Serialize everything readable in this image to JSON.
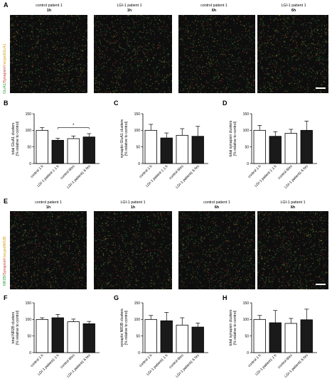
{
  "colors": {
    "black_bar": "#1a1a1a",
    "white_bar": "#ffffff",
    "green": "#2e9e3e",
    "red": "#c0392b",
    "yellow": "#d4a017"
  },
  "row1": {
    "letter": "A",
    "titles": [
      {
        "line1": "control patient 1",
        "line2": "1h"
      },
      {
        "line1": "LGI-1 patient 1",
        "line2": "1h"
      },
      {
        "line1": "control patient 1",
        "line2": "6h"
      },
      {
        "line1": "LGI-1 patient 1",
        "line2": "6h"
      }
    ],
    "side_label": {
      "p1": "GluA1/",
      "p2": "Synapsin/",
      "p3": "merged",
      "p4": "GluA1"
    }
  },
  "row2": {
    "letter": "E",
    "titles": [
      {
        "line1": "control patient 1",
        "line2": "1h"
      },
      {
        "line1": "LGI-1 patient 1",
        "line2": "1h"
      },
      {
        "line1": "control patient 1",
        "line2": "6h"
      },
      {
        "line1": "LGI-1 patient 1",
        "line2": "6h"
      }
    ],
    "side_label": {
      "p1": "NR2B/",
      "p2": "Synapsin/",
      "p3": "merged",
      "p4": "NR2B"
    }
  },
  "chart_data": [
    {
      "panel": "B",
      "type": "bar",
      "ylabel": "total GluA1 clusters\n(% relative to control)",
      "categories": [
        "control 1 h",
        "LGI-1 patient 1 1 h",
        "control 6hrs",
        "LGI-1 patient1 6 hrs"
      ],
      "values": [
        100,
        70,
        75,
        80
      ],
      "errors": [
        8,
        6,
        8,
        10
      ],
      "ylim": [
        0,
        150
      ],
      "annotation": {
        "text": "*",
        "from": 1,
        "to": 3
      }
    },
    {
      "panel": "C",
      "type": "bar",
      "ylabel": "synaptic GluA1 clusters\n(% relative to control)",
      "categories": [
        "control 1 h",
        "LGI-1 patient 1 1 h",
        "control 6hrs",
        "LGI-1 patient1 6 hrs"
      ],
      "values": [
        100,
        77,
        85,
        82
      ],
      "errors": [
        18,
        15,
        20,
        30
      ],
      "ylim": [
        0,
        150
      ]
    },
    {
      "panel": "D",
      "type": "bar",
      "ylabel": "total synapsin clusters\n(% relative to control)",
      "categories": [
        "control 1 h",
        "LGI-1 patient 1 1 h",
        "control 6hrs",
        "LGI-1 patient1 6 hrs"
      ],
      "values": [
        100,
        82,
        91,
        100
      ],
      "errors": [
        15,
        14,
        12,
        28
      ],
      "ylim": [
        0,
        150
      ]
    },
    {
      "panel": "F",
      "type": "bar",
      "ylabel": "total NR2B clusters\n(% relative to control)",
      "categories": [
        "control 1 h",
        "LGI-1 patient1 1 h",
        "control 6hrs",
        "LGI-1 patient1 6 hrs"
      ],
      "values": [
        100,
        105,
        93,
        87
      ],
      "errors": [
        5,
        10,
        8,
        7
      ],
      "ylim": [
        0,
        150
      ]
    },
    {
      "panel": "G",
      "type": "bar",
      "ylabel": "synaptic NR2B clusters\n(% relative to control)",
      "categories": [
        "control 1 h",
        "LGI-1 patient1 1 h",
        "control 6hrs",
        "LGI-1 patient1 6 hrs"
      ],
      "values": [
        100,
        96,
        83,
        77
      ],
      "errors": [
        12,
        25,
        22,
        12
      ],
      "ylim": [
        0,
        150
      ]
    },
    {
      "panel": "H",
      "type": "bar",
      "ylabel": "total synapsin clusters\n(% relative to control)",
      "categories": [
        "control 1 h",
        "LGI-1 patient1 1 h",
        "control 6hrs",
        "LGI-1 patient1 6 hrs"
      ],
      "values": [
        100,
        90,
        88,
        99
      ],
      "errors": [
        12,
        37,
        15,
        32
      ],
      "ylim": [
        0,
        150
      ]
    }
  ]
}
